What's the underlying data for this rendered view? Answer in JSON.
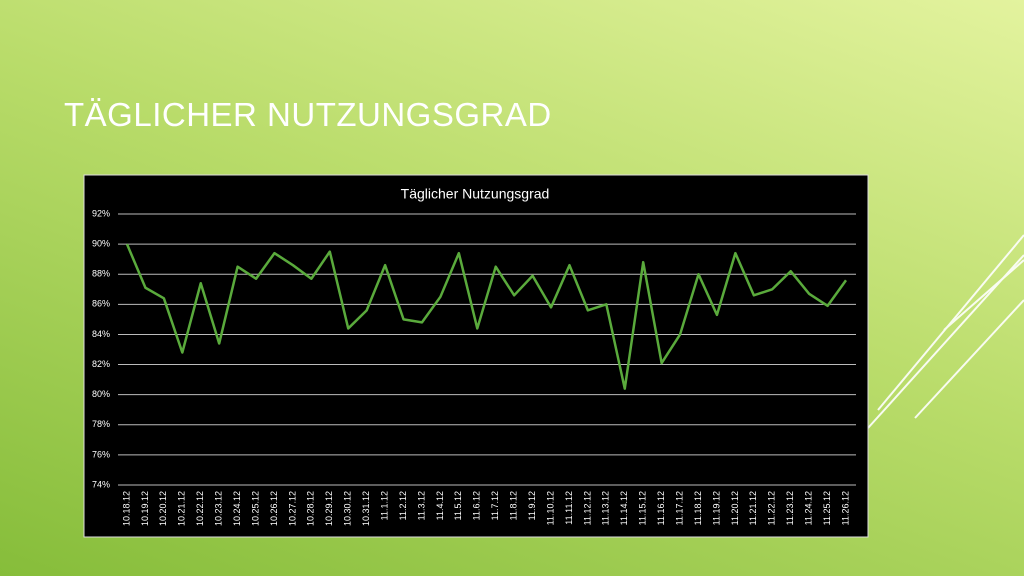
{
  "slide_title": "TÄGLICHER NUTZUNGSGRAD",
  "chart_data": {
    "type": "line",
    "title": "Täglicher Nutzungsgrad",
    "categories": [
      "10.18.12",
      "10.19.12",
      "10.20.12",
      "10.21.12",
      "10.22.12",
      "10.23.12",
      "10.24.12",
      "10.25.12",
      "10.26.12",
      "10.27.12",
      "10.28.12",
      "10.29.12",
      "10.30.12",
      "10.31.12",
      "11.1.12",
      "11.2.12",
      "11.3.12",
      "11.4.12",
      "11.5.12",
      "11.6.12",
      "11.7.12",
      "11.8.12",
      "11.9.12",
      "11.10.12",
      "11.11.12",
      "11.12.12",
      "11.13.12",
      "11.14.12",
      "11.15.12",
      "11.16.12",
      "11.17.12",
      "11.18.12",
      "11.19.12",
      "11.20.12",
      "11.21.12",
      "11.22.12",
      "11.23.12",
      "11.24.12",
      "11.25.12",
      "11.26.12"
    ],
    "values": [
      90.0,
      87.1,
      86.4,
      82.8,
      87.4,
      83.4,
      88.5,
      87.7,
      89.4,
      88.6,
      87.7,
      89.5,
      84.4,
      85.6,
      88.6,
      85.0,
      84.8,
      86.5,
      89.4,
      84.4,
      88.5,
      86.6,
      87.9,
      85.8,
      88.6,
      85.6,
      86.0,
      80.4,
      88.8,
      82.1,
      84.0,
      88.0,
      85.3,
      89.4,
      86.6,
      87.0,
      88.2,
      86.7,
      85.9,
      87.6
    ],
    "color": "#5aaa3c",
    "ylim": [
      74,
      92
    ],
    "yticks": [
      {
        "value": 74,
        "label": "74%"
      },
      {
        "value": 76,
        "label": "76%"
      },
      {
        "value": 78,
        "label": "78%"
      },
      {
        "value": 80,
        "label": "80%"
      },
      {
        "value": 82,
        "label": "82%"
      },
      {
        "value": 84,
        "label": "84%"
      },
      {
        "value": 86,
        "label": "86%"
      },
      {
        "value": 88,
        "label": "88%"
      },
      {
        "value": 90,
        "label": "90%"
      },
      {
        "value": 92,
        "label": "92%"
      }
    ],
    "grid": true
  }
}
